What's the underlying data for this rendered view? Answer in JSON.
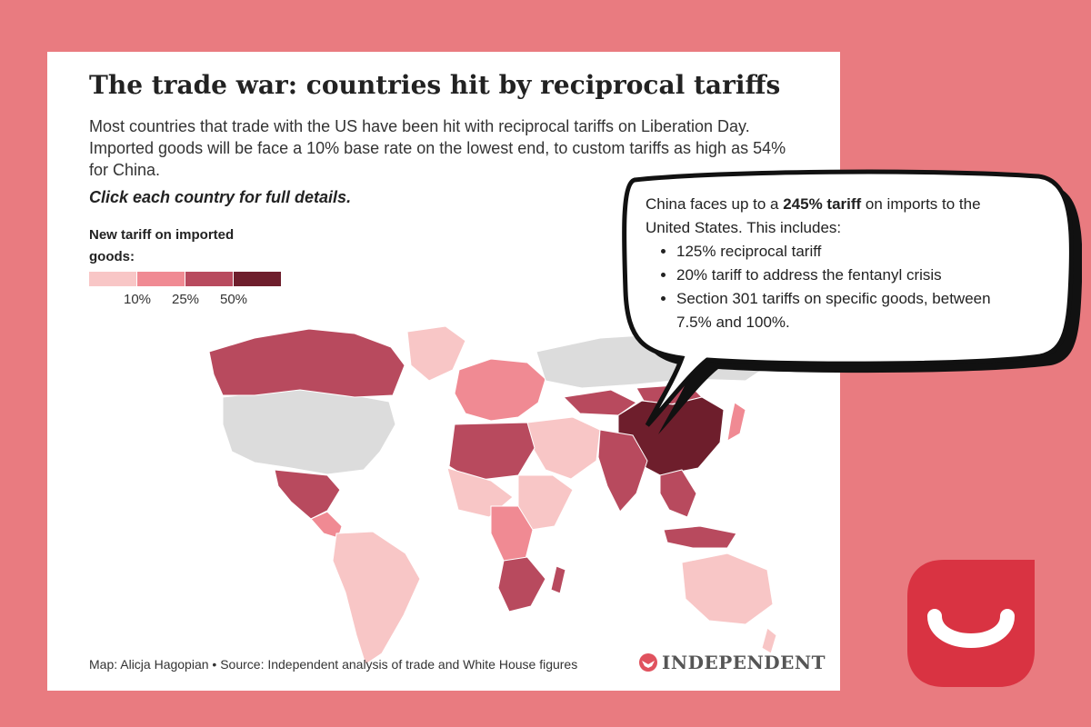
{
  "header": {
    "title": "The trade war: countries hit by reciprocal tariffs",
    "subtitle": "Most countries that trade with the US have been hit with reciprocal tariffs on Liberation Day. Imported goods will be face a 10% base rate on the lowest end, to custom tariffs as high as 54% for China.",
    "cta": "Click each country for full details."
  },
  "legend": {
    "title": "New tariff on imported goods:",
    "colors": [
      "#F8C6C6",
      "#F08A93",
      "#B84A5E",
      "#6E1E2C"
    ],
    "ticks": [
      10,
      25,
      50
    ],
    "tick_labels": [
      "10%",
      "25%",
      "50%"
    ]
  },
  "map_colors": {
    "none": "#DCDCDC",
    "ocean": "#FFFFFF"
  },
  "regions": [
    {
      "name": "United States",
      "tier": "none"
    },
    {
      "name": "Canada",
      "tier": 3
    },
    {
      "name": "Greenland",
      "tier": 1
    },
    {
      "name": "Mexico",
      "tier": 3
    },
    {
      "name": "Central America",
      "tier": 2
    },
    {
      "name": "South America",
      "tier": 1
    },
    {
      "name": "Russia",
      "tier": "none"
    },
    {
      "name": "China",
      "tier": 4
    },
    {
      "name": "Mongolia",
      "tier": 3
    },
    {
      "name": "Kazakhstan",
      "tier": 3
    },
    {
      "name": "India",
      "tier": 3
    },
    {
      "name": "Southeast Asia",
      "tier": 3
    },
    {
      "name": "Indonesia",
      "tier": 3
    },
    {
      "name": "Japan",
      "tier": 2
    },
    {
      "name": "Australia",
      "tier": 1
    },
    {
      "name": "New Zealand",
      "tier": 1
    },
    {
      "name": "Europe",
      "tier": 2
    },
    {
      "name": "North Africa",
      "tier": 3
    },
    {
      "name": "West Africa",
      "tier": 1
    },
    {
      "name": "Central Africa",
      "tier": 2
    },
    {
      "name": "Southern Africa",
      "tier": 3
    },
    {
      "name": "East Africa",
      "tier": 1
    },
    {
      "name": "Madagascar",
      "tier": 3
    },
    {
      "name": "Middle East",
      "tier": 1
    }
  ],
  "callout": {
    "intro_prefix": "China faces up to a ",
    "intro_bold": "245% tariff",
    "intro_suffix": " on imports to the United States. This includes:",
    "items": [
      "125% reciprocal tariff",
      "20% tariff to address the fentanyl crisis",
      "Section 301 tariffs on specific goods, between 7.5% and 100%."
    ]
  },
  "footer": {
    "credit": "Map: Alicja Hagopian • Source: Independent analysis of trade and White House figures",
    "brand": "INDEPENDENT"
  },
  "logo": {
    "color": "#D93342"
  }
}
